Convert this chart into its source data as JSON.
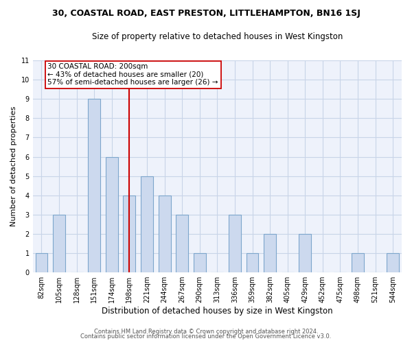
{
  "title1": "30, COASTAL ROAD, EAST PRESTON, LITTLEHAMPTON, BN16 1SJ",
  "title2": "Size of property relative to detached houses in West Kingston",
  "xlabel": "Distribution of detached houses by size in West Kingston",
  "ylabel": "Number of detached properties",
  "categories": [
    "82sqm",
    "105sqm",
    "128sqm",
    "151sqm",
    "174sqm",
    "198sqm",
    "221sqm",
    "244sqm",
    "267sqm",
    "290sqm",
    "313sqm",
    "336sqm",
    "359sqm",
    "382sqm",
    "405sqm",
    "429sqm",
    "452sqm",
    "475sqm",
    "498sqm",
    "521sqm",
    "544sqm"
  ],
  "values": [
    1,
    3,
    0,
    9,
    6,
    4,
    5,
    4,
    3,
    1,
    0,
    3,
    1,
    2,
    0,
    2,
    0,
    0,
    1,
    0,
    1
  ],
  "bar_color": "#ccd9ee",
  "bar_edge_color": "#7da6cc",
  "vline_color": "#cc0000",
  "annotation_title": "30 COASTAL ROAD: 200sqm",
  "annotation_line1": "← 43% of detached houses are smaller (20)",
  "annotation_line2": "57% of semi-detached houses are larger (26) →",
  "annotation_box_facecolor": "#ffffff",
  "annotation_box_edgecolor": "#cc0000",
  "ylim": [
    0,
    11
  ],
  "yticks": [
    0,
    1,
    2,
    3,
    4,
    5,
    6,
    7,
    8,
    9,
    10,
    11
  ],
  "grid_color": "#c8d4e8",
  "bg_color": "#ffffff",
  "plot_bg_color": "#eef2fb",
  "footer1": "Contains HM Land Registry data © Crown copyright and database right 2024.",
  "footer2": "Contains public sector information licensed under the Open Government Licence v3.0."
}
